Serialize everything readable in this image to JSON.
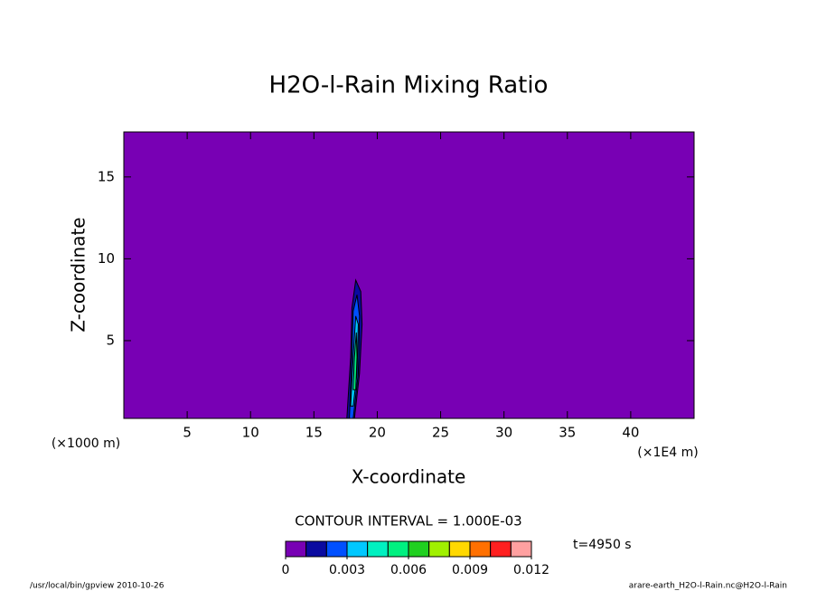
{
  "chart_data": {
    "type": "contour",
    "title": "H2O-l-Rain Mixing Ratio",
    "xlabel": "X-coordinate",
    "ylabel": "Z-coordinate",
    "xunit_left": "(×1000 m)",
    "xunit_right": "(×1E4 m)",
    "xlim": [
      0,
      45
    ],
    "ylim": [
      0.25,
      17.75
    ],
    "xticks": [
      5,
      10,
      15,
      20,
      25,
      30,
      35,
      40
    ],
    "yticks": [
      5,
      10,
      15
    ],
    "contour_interval": "CONTOUR INTERVAL = 1.000E-03",
    "time_label": "t=4950 s",
    "footer_left": "/usr/local/bin/gpview  2010-10-26",
    "footer_right": "arare-earth_H2O-l-Rain.nc@H2O-l-Rain",
    "colorbar": {
      "levels": [
        0,
        0.001,
        0.002,
        0.003,
        0.004,
        0.005,
        0.006,
        0.007,
        0.008,
        0.009,
        0.01,
        0.011,
        0.012
      ],
      "colors": [
        "#7800b4",
        "#0a0aa0",
        "#0050ff",
        "#00c8ff",
        "#00f0c0",
        "#00f080",
        "#20d020",
        "#a0f000",
        "#ffd800",
        "#ff7000",
        "#ff2020",
        "#ffa0a0"
      ],
      "ticks": [
        0,
        0.003,
        0.006,
        0.009,
        0.012
      ]
    },
    "contours": [
      {
        "level": 0.001,
        "x": [
          17.6,
          17.9,
          18.0,
          18.3,
          18.7,
          18.8,
          18.6,
          18.2
        ],
        "y": [
          0.25,
          4,
          7,
          8.7,
          8.0,
          6,
          3,
          0.25
        ]
      },
      {
        "level": 0.002,
        "x": [
          17.8,
          18.0,
          18.1,
          18.4,
          18.6,
          18.5,
          18.1
        ],
        "y": [
          0.25,
          4,
          6.8,
          7.8,
          6.5,
          3,
          0.25
        ]
      },
      {
        "level": 0.003,
        "x": [
          17.9,
          18.1,
          18.3,
          18.5,
          18.4,
          18.1
        ],
        "y": [
          1,
          4,
          6.5,
          6.0,
          3,
          1
        ]
      },
      {
        "level": 0.005,
        "x": [
          18.1,
          18.2,
          18.35,
          18.4,
          18.3
        ],
        "y": [
          2,
          4,
          5.5,
          4,
          2
        ]
      }
    ]
  }
}
